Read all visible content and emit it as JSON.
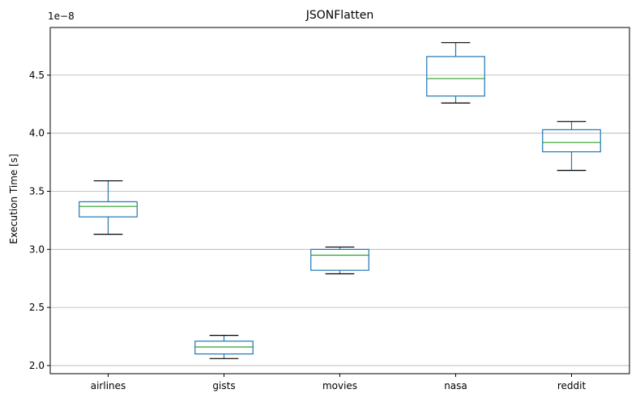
{
  "chart_data": {
    "type": "box",
    "title": "JSONFlatten",
    "xlabel": "",
    "ylabel": "Execution Time [s]",
    "y_offset_text": "1e−8",
    "categories": [
      "airlines",
      "gists",
      "movies",
      "nasa",
      "reddit"
    ],
    "boxes": [
      {
        "category": "airlines",
        "whisker_low": 3.13,
        "q1": 3.28,
        "median": 3.37,
        "q3": 3.41,
        "whisker_high": 3.59
      },
      {
        "category": "gists",
        "whisker_low": 2.06,
        "q1": 2.1,
        "median": 2.16,
        "q3": 2.21,
        "whisker_high": 2.26
      },
      {
        "category": "movies",
        "whisker_low": 2.79,
        "q1": 2.82,
        "median": 2.95,
        "q3": 3.0,
        "whisker_high": 3.02
      },
      {
        "category": "nasa",
        "whisker_low": 4.26,
        "q1": 4.32,
        "median": 4.47,
        "q3": 4.66,
        "whisker_high": 4.78
      },
      {
        "category": "reddit",
        "whisker_low": 3.68,
        "q1": 3.84,
        "median": 3.92,
        "q3": 4.03,
        "whisker_high": 4.1
      }
    ],
    "y_ticks": [
      2.0,
      2.5,
      3.0,
      3.5,
      4.0,
      4.5
    ],
    "y_tick_labels": [
      "2.0",
      "2.5",
      "3.0",
      "3.5",
      "4.0",
      "4.5"
    ],
    "ylim": [
      1.93,
      4.91
    ],
    "grid": "y",
    "colors": {
      "box": "#1f77b4",
      "median": "#2ca02c",
      "whisker": "#000000",
      "grid": "#b0b0b0"
    }
  }
}
